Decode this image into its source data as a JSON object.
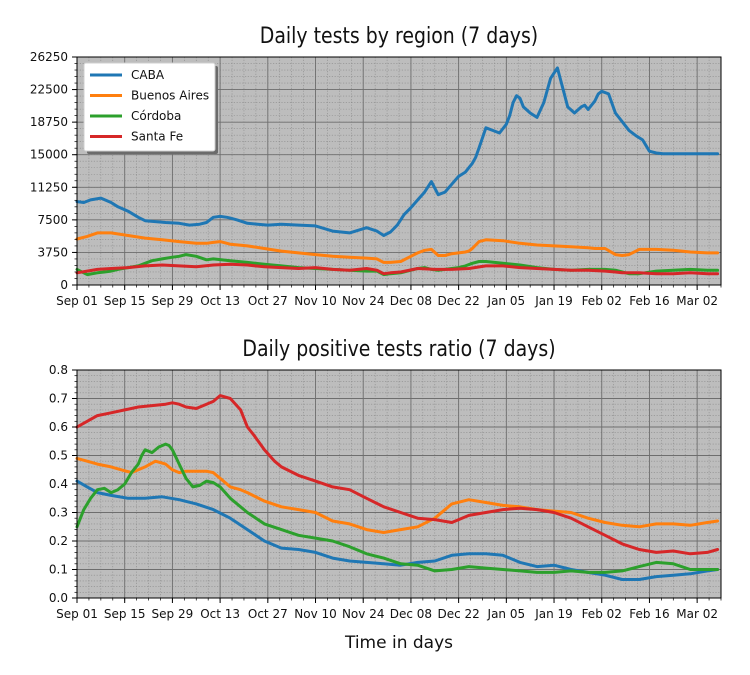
{
  "chart_data": [
    {
      "type": "line",
      "title": "Daily tests by region (7 days)",
      "xlabel": "",
      "ylabel": "",
      "grid": true,
      "legend_position": "top-left",
      "x_ticks": [
        "Sep 01",
        "Sep 15",
        "Sep 29",
        "Oct 13",
        "Oct 27",
        "Nov 10",
        "Nov 24",
        "Dec 08",
        "Dec 22",
        "Jan 05",
        "Jan 19",
        "Feb 02",
        "Feb 16",
        "Mar 02"
      ],
      "y_ticks": [
        "0",
        "3750",
        "7500",
        "11250",
        "15000",
        "18750",
        "22500",
        "26250"
      ],
      "ylim": [
        0,
        26250
      ],
      "xlim_days": [
        0,
        189
      ],
      "x_unit": "days since Sep 01",
      "series": [
        {
          "name": "CABA",
          "color": "#1f77b4",
          "x": [
            0,
            2,
            4,
            7,
            10,
            12,
            15,
            18,
            20,
            23,
            26,
            30,
            33,
            36,
            38,
            40,
            42,
            44,
            45,
            47,
            50,
            53,
            56,
            60,
            65,
            70,
            75,
            80,
            85,
            88,
            90,
            92,
            94,
            96,
            98,
            100,
            102,
            104,
            106,
            108,
            110,
            112,
            114,
            115,
            116,
            117,
            118,
            120,
            122,
            124,
            126,
            127,
            128,
            129,
            130,
            131,
            133,
            135,
            137,
            139,
            141,
            143,
            144,
            146,
            148,
            149,
            150,
            152,
            153,
            154,
            156,
            158,
            160,
            162,
            164,
            166,
            168,
            170,
            172,
            174,
            176,
            178,
            180,
            182,
            184,
            186,
            188
          ],
          "y": [
            9600,
            9500,
            9800,
            10000,
            9500,
            9000,
            8500,
            7800,
            7400,
            7300,
            7200,
            7100,
            6900,
            7000,
            7200,
            7800,
            7900,
            7800,
            7700,
            7500,
            7100,
            7000,
            6900,
            7000,
            6900,
            6800,
            6200,
            6000,
            6600,
            6200,
            5700,
            6100,
            6900,
            8100,
            8900,
            9800,
            10700,
            11900,
            10400,
            10700,
            11600,
            12500,
            13000,
            13500,
            14000,
            14700,
            15800,
            18100,
            17800,
            17500,
            18500,
            19500,
            21000,
            21800,
            21500,
            20500,
            19800,
            19300,
            21000,
            23800,
            25000,
            22000,
            20500,
            19800,
            20500,
            20700,
            20200,
            21200,
            22000,
            22300,
            22000,
            19800,
            18800,
            17800,
            17200,
            16700,
            15400,
            15200,
            15100,
            15100,
            15100,
            15100,
            15100,
            15100,
            15100,
            15100,
            15100
          ]
        },
        {
          "name": "Buenos Aires",
          "color": "#ff7f0e",
          "x": [
            0,
            3,
            6,
            10,
            15,
            20,
            25,
            30,
            35,
            38,
            40,
            42,
            45,
            50,
            55,
            60,
            65,
            70,
            75,
            80,
            85,
            88,
            90,
            92,
            95,
            98,
            100,
            102,
            104,
            106,
            108,
            110,
            112,
            114,
            115,
            116,
            118,
            120,
            125,
            130,
            135,
            140,
            145,
            150,
            152,
            155,
            158,
            160,
            162,
            165,
            170,
            175,
            180,
            185,
            188
          ],
          "y": [
            5300,
            5600,
            6000,
            6000,
            5700,
            5400,
            5200,
            5000,
            4800,
            4800,
            4900,
            5000,
            4700,
            4500,
            4200,
            3900,
            3700,
            3500,
            3300,
            3200,
            3100,
            3000,
            2600,
            2600,
            2700,
            3300,
            3700,
            4000,
            4100,
            3400,
            3400,
            3600,
            3700,
            3800,
            3900,
            4200,
            5000,
            5200,
            5100,
            4800,
            4600,
            4500,
            4400,
            4300,
            4200,
            4200,
            3500,
            3400,
            3500,
            4100,
            4100,
            4000,
            3800,
            3700,
            3700
          ]
        },
        {
          "name": "Córdoba",
          "color": "#2ca02c",
          "x": [
            0,
            3,
            6,
            8,
            10,
            12,
            15,
            18,
            20,
            22,
            25,
            28,
            30,
            32,
            35,
            38,
            40,
            45,
            50,
            55,
            60,
            65,
            70,
            75,
            80,
            85,
            88,
            90,
            92,
            95,
            98,
            100,
            102,
            104,
            106,
            108,
            110,
            112,
            114,
            116,
            118,
            120,
            125,
            130,
            135,
            140,
            145,
            150,
            155,
            158,
            160,
            162,
            165,
            170,
            175,
            180,
            185,
            188
          ],
          "y": [
            1800,
            1200,
            1400,
            1500,
            1600,
            1800,
            2000,
            2200,
            2500,
            2800,
            3000,
            3200,
            3300,
            3500,
            3300,
            2900,
            3000,
            2800,
            2600,
            2400,
            2200,
            2000,
            1900,
            1800,
            1700,
            1600,
            1600,
            1200,
            1300,
            1400,
            1700,
            1900,
            2000,
            1800,
            1700,
            1800,
            1900,
            2000,
            2200,
            2500,
            2700,
            2700,
            2500,
            2300,
            2000,
            1800,
            1700,
            1800,
            1800,
            1700,
            1500,
            1300,
            1300,
            1600,
            1700,
            1800,
            1700,
            1700
          ]
        },
        {
          "name": "Santa Fe",
          "color": "#d62728",
          "x": [
            0,
            3,
            6,
            10,
            15,
            20,
            25,
            30,
            35,
            40,
            45,
            50,
            55,
            60,
            65,
            70,
            75,
            80,
            85,
            88,
            90,
            92,
            95,
            100,
            105,
            110,
            115,
            120,
            125,
            130,
            135,
            140,
            145,
            150,
            155,
            158,
            160,
            165,
            170,
            175,
            180,
            185,
            188
          ],
          "y": [
            1400,
            1600,
            1800,
            1900,
            2000,
            2200,
            2300,
            2200,
            2100,
            2300,
            2400,
            2300,
            2100,
            2000,
            1900,
            2000,
            1800,
            1700,
            1900,
            1700,
            1300,
            1400,
            1500,
            1900,
            1800,
            1800,
            1900,
            2200,
            2200,
            2000,
            1900,
            1800,
            1700,
            1700,
            1600,
            1500,
            1400,
            1400,
            1300,
            1300,
            1400,
            1300,
            1300
          ]
        }
      ]
    },
    {
      "type": "line",
      "title": "Daily positive tests ratio (7 days)",
      "xlabel": "Time in days",
      "ylabel": "",
      "grid": true,
      "legend_position": "none",
      "x_ticks": [
        "Sep 01",
        "Sep 15",
        "Sep 29",
        "Oct 13",
        "Oct 27",
        "Nov 10",
        "Nov 24",
        "Dec 08",
        "Dec 22",
        "Jan 05",
        "Jan 19",
        "Feb 02",
        "Feb 16",
        "Mar 02"
      ],
      "y_ticks": [
        "0.0",
        "0.1",
        "0.2",
        "0.3",
        "0.4",
        "0.5",
        "0.6",
        "0.7",
        "0.8"
      ],
      "ylim": [
        0,
        0.8
      ],
      "xlim_days": [
        0,
        189
      ],
      "x_unit": "days since Sep 01",
      "series": [
        {
          "name": "CABA",
          "color": "#1f77b4",
          "x": [
            0,
            3,
            6,
            10,
            15,
            20,
            25,
            30,
            35,
            40,
            45,
            50,
            55,
            60,
            65,
            70,
            75,
            80,
            85,
            90,
            95,
            100,
            105,
            110,
            115,
            120,
            125,
            130,
            135,
            140,
            145,
            150,
            155,
            160,
            165,
            170,
            175,
            180,
            185,
            188
          ],
          "y": [
            0.41,
            0.39,
            0.37,
            0.36,
            0.35,
            0.35,
            0.355,
            0.345,
            0.33,
            0.31,
            0.28,
            0.24,
            0.2,
            0.175,
            0.17,
            0.16,
            0.14,
            0.13,
            0.125,
            0.12,
            0.115,
            0.125,
            0.13,
            0.15,
            0.155,
            0.155,
            0.15,
            0.125,
            0.11,
            0.115,
            0.1,
            0.09,
            0.08,
            0.065,
            0.065,
            0.075,
            0.08,
            0.085,
            0.095,
            0.1
          ]
        },
        {
          "name": "Buenos Aires",
          "color": "#ff7f0e",
          "x": [
            0,
            3,
            6,
            10,
            13,
            16,
            20,
            23,
            26,
            28,
            30,
            32,
            35,
            38,
            40,
            42,
            45,
            48,
            50,
            55,
            60,
            65,
            70,
            75,
            80,
            85,
            90,
            95,
            100,
            105,
            110,
            115,
            120,
            125,
            130,
            135,
            140,
            145,
            150,
            155,
            160,
            165,
            170,
            175,
            180,
            185,
            188
          ],
          "y": [
            0.49,
            0.48,
            0.47,
            0.46,
            0.45,
            0.44,
            0.46,
            0.48,
            0.47,
            0.45,
            0.44,
            0.445,
            0.445,
            0.445,
            0.44,
            0.42,
            0.39,
            0.38,
            0.37,
            0.34,
            0.32,
            0.31,
            0.3,
            0.27,
            0.26,
            0.24,
            0.23,
            0.24,
            0.25,
            0.28,
            0.33,
            0.345,
            0.335,
            0.325,
            0.32,
            0.31,
            0.305,
            0.3,
            0.28,
            0.265,
            0.255,
            0.25,
            0.26,
            0.26,
            0.255,
            0.265,
            0.27
          ]
        },
        {
          "name": "Córdoba",
          "color": "#2ca02c",
          "x": [
            0,
            2,
            4,
            6,
            8,
            10,
            12,
            14,
            16,
            18,
            19,
            20,
            22,
            24,
            26,
            27,
            28,
            30,
            32,
            34,
            36,
            38,
            40,
            42,
            45,
            50,
            55,
            60,
            65,
            70,
            75,
            80,
            85,
            90,
            95,
            100,
            105,
            110,
            115,
            120,
            125,
            130,
            135,
            140,
            145,
            150,
            155,
            160,
            165,
            170,
            175,
            180,
            185,
            188
          ],
          "y": [
            0.25,
            0.31,
            0.35,
            0.38,
            0.385,
            0.37,
            0.38,
            0.4,
            0.44,
            0.47,
            0.5,
            0.52,
            0.51,
            0.53,
            0.54,
            0.535,
            0.52,
            0.47,
            0.42,
            0.39,
            0.395,
            0.41,
            0.405,
            0.39,
            0.35,
            0.3,
            0.26,
            0.24,
            0.22,
            0.21,
            0.2,
            0.18,
            0.155,
            0.14,
            0.12,
            0.115,
            0.095,
            0.1,
            0.11,
            0.105,
            0.1,
            0.095,
            0.09,
            0.09,
            0.095,
            0.09,
            0.09,
            0.095,
            0.11,
            0.125,
            0.12,
            0.1,
            0.1,
            0.1
          ]
        },
        {
          "name": "Santa Fe",
          "color": "#d62728",
          "x": [
            0,
            3,
            6,
            10,
            14,
            18,
            22,
            26,
            28,
            30,
            32,
            35,
            38,
            40,
            42,
            45,
            48,
            50,
            52,
            55,
            58,
            60,
            65,
            70,
            75,
            80,
            85,
            90,
            95,
            100,
            105,
            110,
            115,
            120,
            125,
            130,
            135,
            140,
            145,
            150,
            155,
            160,
            165,
            170,
            175,
            180,
            185,
            188
          ],
          "y": [
            0.6,
            0.62,
            0.64,
            0.65,
            0.66,
            0.67,
            0.675,
            0.68,
            0.685,
            0.68,
            0.67,
            0.665,
            0.68,
            0.69,
            0.71,
            0.7,
            0.66,
            0.6,
            0.57,
            0.52,
            0.48,
            0.46,
            0.43,
            0.41,
            0.39,
            0.38,
            0.35,
            0.32,
            0.3,
            0.28,
            0.275,
            0.265,
            0.29,
            0.3,
            0.31,
            0.315,
            0.31,
            0.3,
            0.28,
            0.25,
            0.22,
            0.19,
            0.17,
            0.16,
            0.165,
            0.155,
            0.16,
            0.17
          ]
        }
      ]
    }
  ]
}
